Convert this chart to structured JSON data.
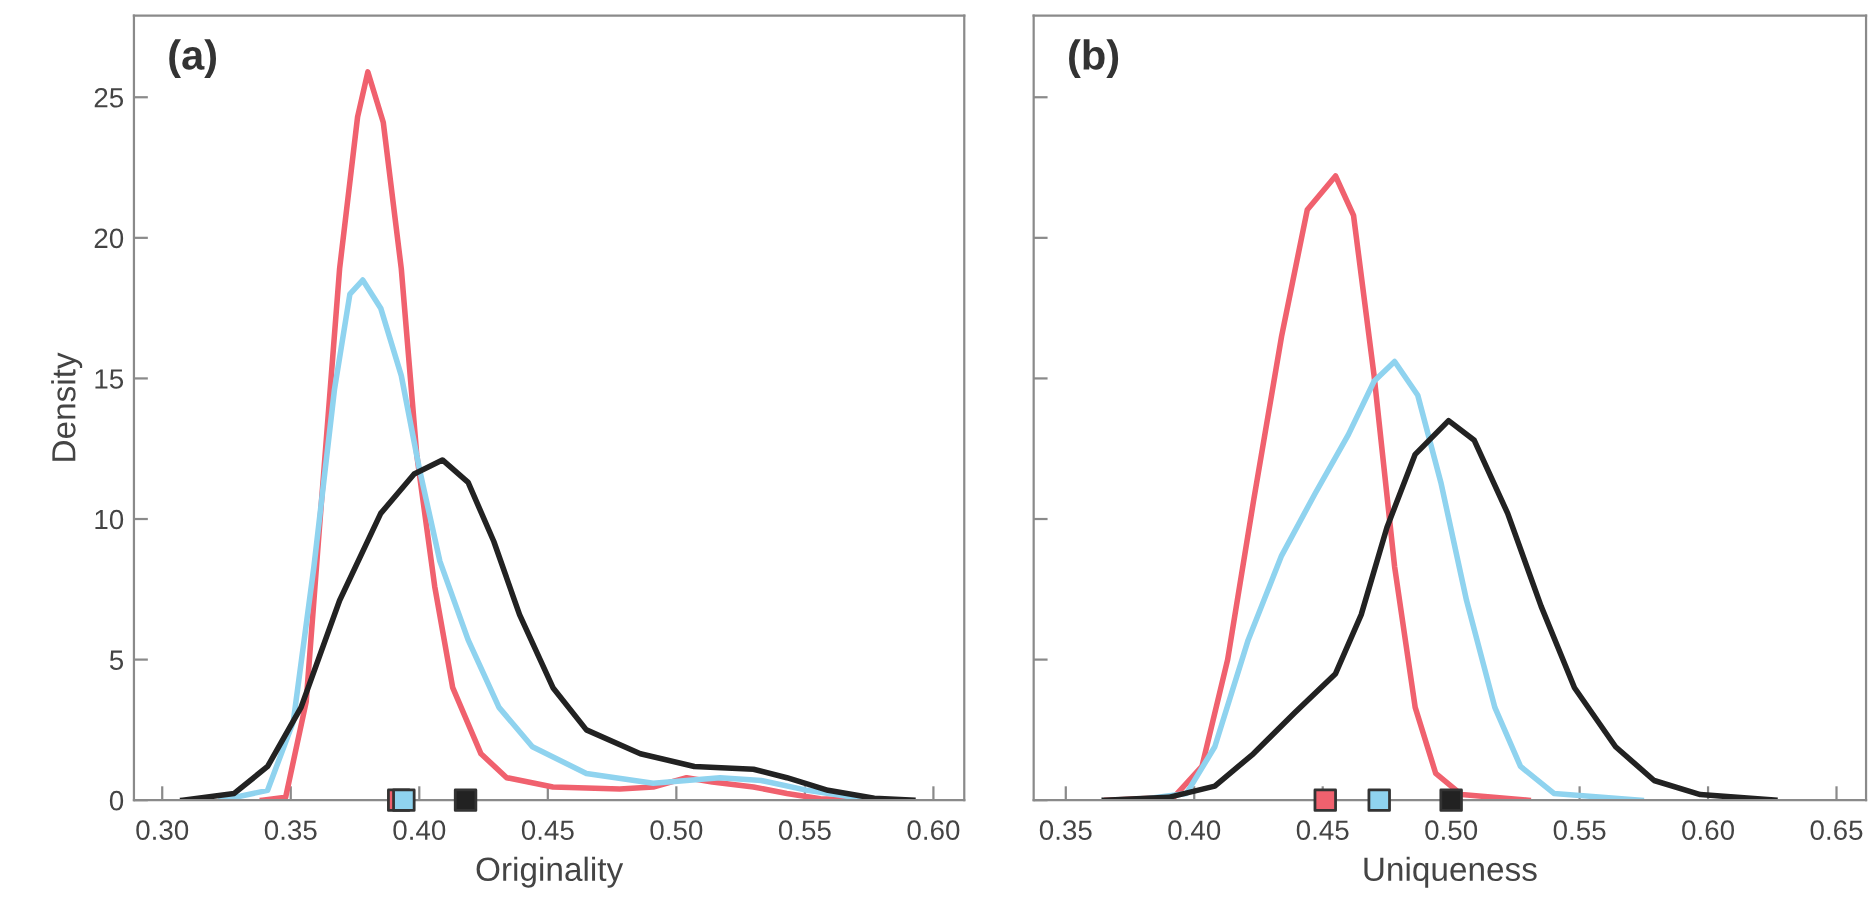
{
  "chart_data": [
    {
      "type": "line",
      "xlabel": "Originality",
      "ylabel": "Density",
      "annotations": [
        "(a)"
      ],
      "xlim": [
        0.289,
        0.612
      ],
      "ylim": [
        0,
        27.9
      ],
      "xticks": [
        {
          "value": 0.3,
          "label": "0.30"
        },
        {
          "value": 0.35,
          "label": "0.35"
        },
        {
          "value": 0.4,
          "label": "0.40"
        },
        {
          "value": 0.45,
          "label": "0.45"
        },
        {
          "value": 0.5,
          "label": "0.50"
        },
        {
          "value": 0.55,
          "label": "0.55"
        },
        {
          "value": 0.6,
          "label": "0.60"
        }
      ],
      "yticks": [
        0,
        5,
        10,
        15,
        20,
        25
      ],
      "grid": false,
      "marker": "none",
      "line_style": "solid",
      "series": [
        {
          "color": "#f0616e",
          "x": [
            0.339,
            0.348,
            0.356,
            0.361,
            0.369,
            0.376,
            0.38,
            0.386,
            0.393,
            0.399,
            0.406,
            0.413,
            0.424,
            0.434,
            0.452,
            0.478,
            0.491,
            0.504,
            0.514,
            0.53,
            0.543,
            0.556,
            0.569
          ],
          "values": [
            0,
            0.1,
            3.5,
            9.5,
            18.9,
            24.3,
            25.9,
            24.1,
            18.9,
            12.3,
            7.6,
            4.0,
            1.65,
            0.8,
            0.47,
            0.4,
            0.47,
            0.8,
            0.65,
            0.47,
            0.24,
            0.05,
            0
          ]
        },
        {
          "color": "#8fd3ef",
          "x": [
            0.323,
            0.341,
            0.351,
            0.359,
            0.367,
            0.373,
            0.378,
            0.385,
            0.393,
            0.4,
            0.408,
            0.419,
            0.431,
            0.444,
            0.465,
            0.491,
            0.517,
            0.533,
            0.551,
            0.569,
            0.582
          ],
          "values": [
            0,
            0.35,
            2.8,
            8.3,
            14.6,
            18.0,
            18.5,
            17.5,
            15.1,
            11.8,
            8.5,
            5.7,
            3.3,
            1.9,
            0.95,
            0.6,
            0.8,
            0.7,
            0.35,
            0.1,
            0
          ]
        },
        {
          "color": "#222222",
          "x": [
            0.308,
            0.328,
            0.341,
            0.354,
            0.369,
            0.385,
            0.398,
            0.409,
            0.419,
            0.429,
            0.439,
            0.452,
            0.465,
            0.486,
            0.507,
            0.53,
            0.543,
            0.559,
            0.577,
            0.592
          ],
          "values": [
            0,
            0.24,
            1.2,
            3.3,
            7.1,
            10.2,
            11.6,
            12.1,
            11.3,
            9.2,
            6.6,
            4.0,
            2.5,
            1.65,
            1.2,
            1.1,
            0.8,
            0.35,
            0.07,
            0
          ]
        },
        {
          "type": "scatter",
          "marker": "square",
          "color": "#f0616e",
          "x": [
            0.392
          ],
          "values": [
            0
          ]
        },
        {
          "type": "scatter",
          "marker": "square",
          "color": "#8fd3ef",
          "x": [
            0.394
          ],
          "values": [
            0
          ]
        },
        {
          "type": "scatter",
          "marker": "square",
          "color": "#222222",
          "x": [
            0.418
          ],
          "values": [
            0
          ]
        }
      ]
    },
    {
      "type": "line",
      "xlabel": "Uniqueness",
      "annotations": [
        "(b)"
      ],
      "xlim": [
        0.3375,
        0.6615
      ],
      "ylim": [
        0,
        27.9
      ],
      "xticks": [
        {
          "value": 0.35,
          "label": "0.35"
        },
        {
          "value": 0.4,
          "label": "0.40"
        },
        {
          "value": 0.45,
          "label": "0.45"
        },
        {
          "value": 0.5,
          "label": "0.50"
        },
        {
          "value": 0.55,
          "label": "0.55"
        },
        {
          "value": 0.6,
          "label": "0.60"
        },
        {
          "value": 0.65,
          "label": "0.65"
        }
      ],
      "yticks": [
        0,
        5,
        10,
        15,
        20,
        25
      ],
      "tick_labels": "x",
      "grid": false,
      "marker": "none",
      "line_style": "solid",
      "series": [
        {
          "color": "#f0616e",
          "x": [
            0.366,
            0.392,
            0.403,
            0.413,
            0.423,
            0.434,
            0.444,
            0.455,
            0.462,
            0.47,
            0.478,
            0.486,
            0.494,
            0.504,
            0.53
          ],
          "values": [
            0,
            0.1,
            1.2,
            5.0,
            10.6,
            16.5,
            21.0,
            22.2,
            20.8,
            15.1,
            8.3,
            3.3,
            0.95,
            0.2,
            0
          ]
        },
        {
          "color": "#8fd3ef",
          "x": [
            0.377,
            0.397,
            0.408,
            0.421,
            0.434,
            0.447,
            0.46,
            0.47,
            0.478,
            0.487,
            0.496,
            0.506,
            0.517,
            0.527,
            0.54,
            0.574
          ],
          "values": [
            0,
            0.24,
            1.9,
            5.7,
            8.7,
            10.9,
            13.0,
            14.9,
            15.6,
            14.4,
            11.3,
            7.1,
            3.3,
            1.2,
            0.24,
            0
          ]
        },
        {
          "color": "#222222",
          "x": [
            0.365,
            0.39,
            0.408,
            0.423,
            0.439,
            0.455,
            0.465,
            0.475,
            0.486,
            0.499,
            0.509,
            0.522,
            0.535,
            0.548,
            0.564,
            0.579,
            0.597,
            0.626
          ],
          "values": [
            0,
            0.1,
            0.5,
            1.65,
            3.1,
            4.5,
            6.6,
            9.7,
            12.3,
            13.5,
            12.8,
            10.2,
            6.9,
            4.0,
            1.9,
            0.7,
            0.2,
            0
          ]
        },
        {
          "type": "scatter",
          "marker": "square",
          "color": "#f0616e",
          "x": [
            0.451
          ],
          "values": [
            0
          ]
        },
        {
          "type": "scatter",
          "marker": "square",
          "color": "#8fd3ef",
          "x": [
            0.472
          ],
          "values": [
            0
          ]
        },
        {
          "type": "scatter",
          "marker": "square",
          "color": "#222222",
          "x": [
            0.5
          ],
          "values": [
            0
          ]
        }
      ]
    }
  ]
}
